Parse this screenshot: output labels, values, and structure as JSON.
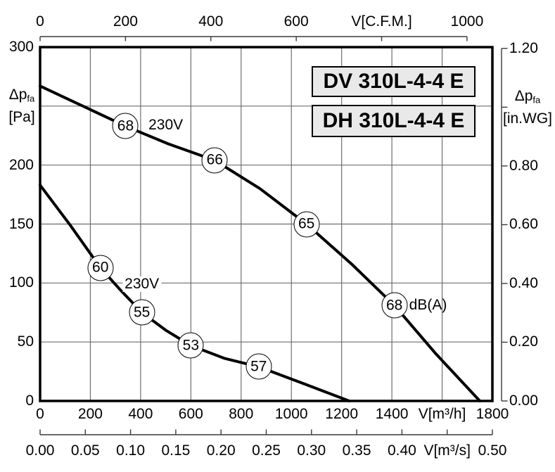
{
  "chart_data": {
    "type": "line",
    "title_boxes": [
      "DV 310L-4-4 E",
      "DH 310L-4-4 E"
    ],
    "x_axis_bottom": {
      "label": "V[m³/h]",
      "min": 0,
      "max": 1800,
      "tick_step": 200,
      "tick_labels": [
        "0",
        "200",
        "400",
        "600",
        "800",
        "1000",
        "1200",
        "1400",
        "V[m³/h]",
        "1800"
      ]
    },
    "x_axis_secondary": {
      "label": "V[m³/s]",
      "min": 0.0,
      "max": 0.5,
      "tick_step": 0.05,
      "tick_labels": [
        "0.00",
        "0.05",
        "0.10",
        "0.15",
        "0.20",
        "0.25",
        "0.30",
        "0.35",
        "0.40",
        "V[m³/s]",
        "0.50"
      ]
    },
    "x_axis_top": {
      "label": "V[C.F.M.]",
      "min": 0,
      "max": 1000,
      "tick_step": 200,
      "tick_labels": [
        "0",
        "200",
        "400",
        "600",
        "V[C.F.M.]",
        "1000"
      ]
    },
    "y_axis_left": {
      "label_main": "Δp",
      "label_sub": "fa",
      "label_unit": "[Pa]",
      "min": 0,
      "max": 300,
      "tick_step": 50,
      "tick_labels": [
        "300",
        "",
        "200",
        "150",
        "100",
        "50",
        "0"
      ]
    },
    "y_axis_right": {
      "label_main": "Δp",
      "label_sub": "fa",
      "label_unit": "[in.WG]",
      "min": 0.0,
      "max": 1.2,
      "tick_step": 0.2,
      "tick_labels": [
        "1.20",
        "",
        "0.80",
        "0.60",
        "0.40",
        "0.20",
        "0.00"
      ]
    },
    "grid": true,
    "series": [
      {
        "name": "high-speed-curve",
        "voltage": "230V",
        "voltage_label_pos": {
          "v": 500,
          "p": 234
        },
        "points": [
          [
            0,
            267
          ],
          [
            120,
            255
          ],
          [
            340,
            233
          ],
          [
            510,
            218
          ],
          [
            695,
            204
          ],
          [
            875,
            180
          ],
          [
            1060,
            150
          ],
          [
            1240,
            116
          ],
          [
            1410,
            81
          ],
          [
            1575,
            40
          ],
          [
            1750,
            0
          ]
        ],
        "noise_markers": [
          {
            "v": 340,
            "p": 233,
            "db": "68"
          },
          {
            "v": 695,
            "p": 204,
            "db": "66"
          },
          {
            "v": 1060,
            "p": 150,
            "db": "65"
          },
          {
            "v": 1410,
            "p": 81,
            "db": "68",
            "suffix": "dB(A)"
          }
        ]
      },
      {
        "name": "low-speed-curve",
        "voltage": "230V",
        "voltage_label_pos": {
          "v": 405,
          "p": 99
        },
        "points": [
          [
            0,
            183
          ],
          [
            120,
            149
          ],
          [
            240,
            113
          ],
          [
            320,
            94
          ],
          [
            405,
            75
          ],
          [
            500,
            60
          ],
          [
            600,
            47
          ],
          [
            735,
            36
          ],
          [
            870,
            29
          ],
          [
            1045,
            15
          ],
          [
            1230,
            0
          ]
        ],
        "noise_markers": [
          {
            "v": 240,
            "p": 113,
            "db": "60"
          },
          {
            "v": 405,
            "p": 75,
            "db": "55"
          },
          {
            "v": 600,
            "p": 47,
            "db": "53"
          },
          {
            "v": 870,
            "p": 29,
            "db": "57"
          }
        ]
      }
    ]
  }
}
